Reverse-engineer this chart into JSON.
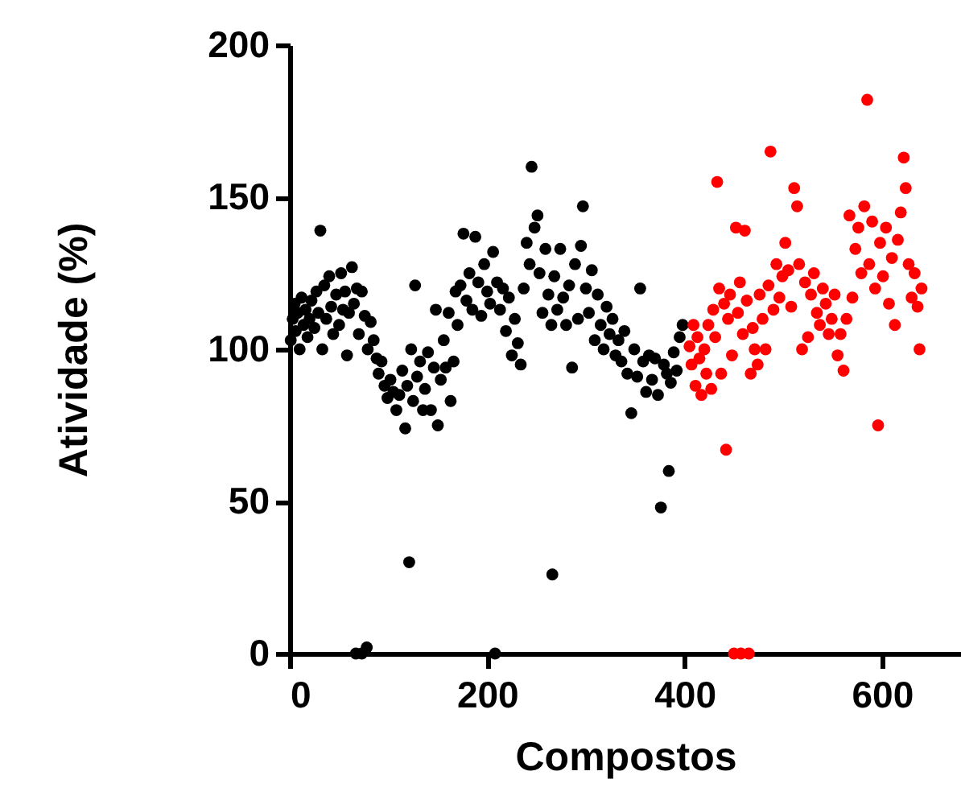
{
  "chart_data": {
    "type": "scatter",
    "xlabel": "Compostos",
    "ylabel": "Atividade (%)",
    "xlim": [
      0,
      680
    ],
    "ylim": [
      0,
      200
    ],
    "xticks": [
      0,
      200,
      400,
      600
    ],
    "yticks": [
      0,
      50,
      100,
      150,
      200
    ],
    "grid": false,
    "marker": "circle",
    "series": [
      {
        "color": "#000000",
        "x": [
          1,
          3,
          5,
          6,
          8,
          10,
          12,
          14,
          16,
          18,
          20,
          22,
          25,
          27,
          29,
          31,
          33,
          35,
          37,
          40,
          42,
          44,
          47,
          50,
          52,
          54,
          56,
          58,
          60,
          63,
          65,
          67,
          68,
          70,
          73,
          73,
          76,
          78,
          79,
          82,
          85,
          88,
          90,
          93,
          96,
          99,
          102,
          105,
          108,
          111,
          114,
          117,
          119,
          121,
          123,
          125,
          127,
          129,
          132,
          135,
          137,
          140,
          143,
          146,
          148,
          150,
          153,
          156,
          158,
          161,
          163,
          166,
          168,
          170,
          173,
          176,
          179,
          182,
          185,
          188,
          191,
          194,
          197,
          200,
          203,
          206,
          208,
          210,
          213,
          216,
          219,
          222,
          225,
          228,
          231,
          234,
          237,
          240,
          243,
          245,
          248,
          251,
          253,
          256,
          259,
          262,
          265,
          266,
          268,
          271,
          274,
          277,
          280,
          283,
          286,
          289,
          292,
          295,
          297,
          300,
          303,
          306,
          309,
          312,
          315,
          318,
          321,
          324,
          327,
          330,
          333,
          336,
          339,
          342,
          346,
          349,
          352,
          355,
          358,
          361,
          364,
          367,
          370,
          373,
          376,
          379,
          382,
          384,
          386,
          389,
          392,
          395,
          398
        ],
        "values": [
          103,
          110,
          115,
          106,
          112,
          100,
          117,
          108,
          113,
          104,
          110,
          116,
          107,
          119,
          112,
          139,
          100,
          121,
          110,
          124,
          114,
          105,
          118,
          108,
          125,
          113,
          119,
          98,
          112,
          127,
          115,
          0,
          120,
          105,
          119,
          0,
          111,
          2,
          100,
          109,
          103,
          97,
          92,
          96,
          88,
          84,
          90,
          86,
          80,
          85,
          93,
          74,
          88,
          30,
          100,
          83,
          121,
          91,
          96,
          80,
          87,
          99,
          80,
          94,
          113,
          75,
          90,
          103,
          94,
          112,
          83,
          96,
          119,
          108,
          121,
          138,
          116,
          125,
          113,
          137,
          122,
          111,
          128,
          119,
          115,
          132,
          0,
          122,
          113,
          120,
          106,
          117,
          98,
          110,
          102,
          95,
          120,
          135,
          128,
          160,
          140,
          144,
          125,
          112,
          133,
          118,
          108,
          26,
          124,
          113,
          133,
          117,
          108,
          121,
          94,
          128,
          110,
          134,
          147,
          120,
          112,
          126,
          103,
          118,
          108,
          100,
          114,
          105,
          110,
          98,
          103,
          96,
          106,
          92,
          79,
          100,
          91,
          120,
          96,
          86,
          98,
          90,
          97,
          85,
          48,
          95,
          92,
          60,
          89,
          99,
          93,
          104,
          108
        ]
      },
      {
        "color": "#ff0000",
        "x": [
          405,
          407,
          409,
          411,
          413,
          415,
          417,
          420,
          422,
          424,
          427,
          429,
          431,
          433,
          435,
          437,
          440,
          442,
          444,
          446,
          448,
          450,
          452,
          454,
          456,
          457,
          459,
          461,
          463,
          465,
          467,
          469,
          471,
          474,
          476,
          479,
          482,
          485,
          487,
          490,
          493,
          496,
          499,
          502,
          505,
          508,
          511,
          514,
          516,
          519,
          522,
          525,
          528,
          531,
          534,
          537,
          540,
          543,
          546,
          549,
          552,
          555,
          558,
          561,
          564,
          567,
          570,
          573,
          576,
          579,
          582,
          585,
          587,
          590,
          593,
          596,
          598,
          601,
          604,
          607,
          610,
          613,
          616,
          619,
          622,
          624,
          627,
          630,
          633,
          636,
          638,
          640
        ],
        "values": [
          101,
          95,
          108,
          88,
          104,
          97,
          85,
          100,
          92,
          108,
          87,
          113,
          104,
          155,
          120,
          92,
          115,
          67,
          110,
          118,
          98,
          0,
          140,
          112,
          122,
          0,
          105,
          139,
          116,
          0,
          92,
          107,
          100,
          95,
          118,
          110,
          100,
          121,
          165,
          113,
          128,
          117,
          124,
          135,
          126,
          114,
          153,
          147,
          128,
          100,
          122,
          104,
          118,
          125,
          112,
          108,
          120,
          115,
          105,
          110,
          118,
          98,
          105,
          93,
          110,
          144,
          117,
          133,
          140,
          125,
          147,
          182,
          128,
          142,
          120,
          75,
          135,
          124,
          140,
          115,
          130,
          108,
          136,
          145,
          163,
          153,
          128,
          117,
          125,
          114,
          100,
          120
        ]
      }
    ]
  }
}
